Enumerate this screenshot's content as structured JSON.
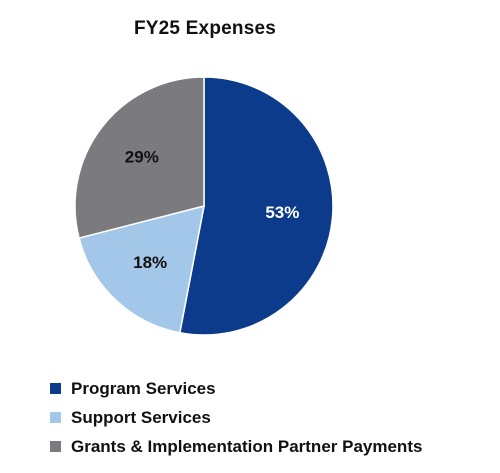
{
  "chart_data": {
    "type": "pie",
    "title": "FY25 Expenses",
    "slices": [
      {
        "name": "Program Services",
        "value": 53,
        "label": "53%",
        "color": "#0D3B8C",
        "label_color": "#ffffff"
      },
      {
        "name": "Support Services",
        "value": 18,
        "label": "18%",
        "color": "#A3C7E8",
        "label_color": "#111111"
      },
      {
        "name": "Grants & Implementation Partner Payments",
        "value": 29,
        "label": "29%",
        "color": "#7A7A7F",
        "label_color": "#111111"
      }
    ],
    "start_angle": "12 o'clock",
    "direction": "clockwise",
    "legend_placement": "bottom-left"
  }
}
